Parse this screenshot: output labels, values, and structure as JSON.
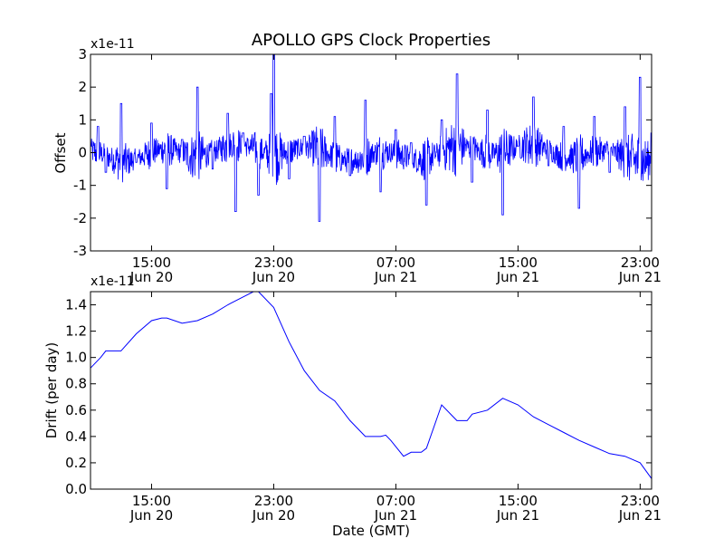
{
  "chart_data": [
    {
      "type": "line",
      "title": "APOLLO GPS Clock Properties",
      "xlabel": "",
      "ylabel": "Offset",
      "scale_label": "x1e-11",
      "ylim": [
        -3,
        3
      ],
      "yticks": [
        "3",
        "2",
        "1",
        "0",
        "-1",
        "-2",
        "-3"
      ],
      "xlim": [
        "Jun 20 11:00",
        "Jun 21 23:45"
      ],
      "xtick_times": [
        "15:00",
        "23:00",
        "07:00",
        "15:00",
        "23:00"
      ],
      "xtick_dates": [
        "Jun 20",
        "Jun 20",
        "Jun 21",
        "Jun 21",
        "Jun 21"
      ],
      "grid": false,
      "line_color": "#0000ff",
      "series": [
        {
          "name": "",
          "x": [
            "Jun 20 11:00",
            "Jun 20 11:30",
            "Jun 20 12:00",
            "Jun 20 13:00",
            "Jun 20 14:00",
            "Jun 20 15:00",
            "Jun 20 16:00",
            "Jun 20 17:00",
            "Jun 20 18:00",
            "Jun 20 19:00",
            "Jun 20 20:00",
            "Jun 20 20:30",
            "Jun 20 21:00",
            "Jun 20 22:00",
            "Jun 20 22:50",
            "Jun 20 23:00",
            "Jun 21 00:00",
            "Jun 21 01:00",
            "Jun 21 02:00",
            "Jun 21 03:00",
            "Jun 21 04:00",
            "Jun 21 05:00",
            "Jun 21 06:00",
            "Jun 21 07:00",
            "Jun 21 08:00",
            "Jun 21 09:00",
            "Jun 21 10:00",
            "Jun 21 11:00",
            "Jun 21 12:00",
            "Jun 21 13:00",
            "Jun 21 14:00",
            "Jun 21 15:00",
            "Jun 21 16:00",
            "Jun 21 17:00",
            "Jun 21 18:00",
            "Jun 21 19:00",
            "Jun 21 20:00",
            "Jun 21 21:00",
            "Jun 21 22:00",
            "Jun 21 23:00",
            "Jun 21 23:45"
          ],
          "values": [
            0.2,
            0.8,
            -0.6,
            1.5,
            -0.3,
            0.9,
            -1.1,
            0.4,
            2.0,
            -0.5,
            1.2,
            -1.8,
            0.6,
            -1.3,
            1.8,
            3.0,
            -0.8,
            0.5,
            -2.1,
            1.1,
            -0.7,
            1.6,
            -1.2,
            0.7,
            0.3,
            -1.6,
            1.0,
            2.4,
            -0.9,
            1.3,
            -1.9,
            0.2,
            1.7,
            -0.4,
            0.8,
            -1.7,
            1.1,
            -0.6,
            1.4,
            2.3,
            0.6
          ]
        }
      ]
    },
    {
      "type": "line",
      "title": "",
      "xlabel": "Date (GMT)",
      "ylabel": "Drift (per day)",
      "scale_label": "x1e-11",
      "ylim": [
        0.0,
        1.5
      ],
      "yticks": [
        "1.4",
        "1.2",
        "1.0",
        "0.8",
        "0.6",
        "0.4",
        "0.2",
        "0.0"
      ],
      "xlim": [
        "Jun 20 11:00",
        "Jun 21 23:45"
      ],
      "xtick_times": [
        "15:00",
        "23:00",
        "07:00",
        "15:00",
        "23:00"
      ],
      "xtick_dates": [
        "Jun 20",
        "Jun 20",
        "Jun 21",
        "Jun 21",
        "Jun 21"
      ],
      "grid": false,
      "line_color": "#0000ff",
      "series": [
        {
          "name": "",
          "x": [
            "Jun 20 11:00",
            "Jun 20 11:40",
            "Jun 20 12:00",
            "Jun 20 13:00",
            "Jun 20 14:00",
            "Jun 20 15:00",
            "Jun 20 15:40",
            "Jun 20 16:00",
            "Jun 20 17:00",
            "Jun 20 18:00",
            "Jun 20 19:00",
            "Jun 20 20:00",
            "Jun 20 21:00",
            "Jun 20 21:40",
            "Jun 20 22:00",
            "Jun 20 23:00",
            "Jun 21 00:00",
            "Jun 21 01:00",
            "Jun 21 02:00",
            "Jun 21 03:00",
            "Jun 21 04:00",
            "Jun 21 05:00",
            "Jun 21 06:00",
            "Jun 21 06:20",
            "Jun 21 06:40",
            "Jun 21 07:30",
            "Jun 21 08:00",
            "Jun 21 08:40",
            "Jun 21 09:00",
            "Jun 21 10:00",
            "Jun 21 10:40",
            "Jun 21 11:00",
            "Jun 21 11:40",
            "Jun 21 12:00",
            "Jun 21 13:00",
            "Jun 21 14:00",
            "Jun 21 15:00",
            "Jun 21 16:00",
            "Jun 21 17:00",
            "Jun 21 18:00",
            "Jun 21 19:00",
            "Jun 21 20:00",
            "Jun 21 21:00",
            "Jun 21 22:00",
            "Jun 21 23:00",
            "Jun 21 23:45"
          ],
          "values": [
            0.92,
            1.0,
            1.05,
            1.05,
            1.18,
            1.28,
            1.3,
            1.3,
            1.26,
            1.28,
            1.33,
            1.4,
            1.46,
            1.5,
            1.5,
            1.38,
            1.12,
            0.9,
            0.75,
            0.67,
            0.52,
            0.4,
            0.4,
            0.41,
            0.37,
            0.25,
            0.28,
            0.28,
            0.31,
            0.64,
            0.56,
            0.52,
            0.52,
            0.57,
            0.6,
            0.69,
            0.64,
            0.55,
            0.49,
            0.43,
            0.37,
            0.32,
            0.27,
            0.25,
            0.2,
            0.08
          ]
        }
      ]
    }
  ]
}
